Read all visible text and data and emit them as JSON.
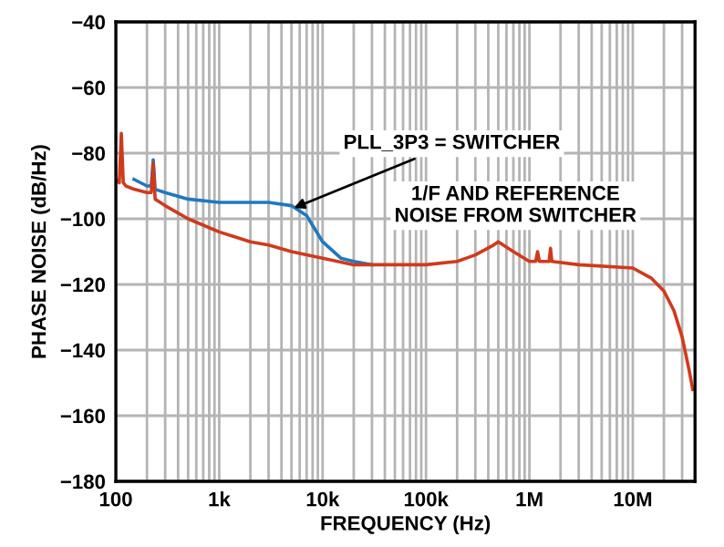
{
  "chart_data": {
    "type": "line",
    "xlabel": "FREQUENCY (Hz)",
    "ylabel": "PHASE NOISE (dB/Hz)",
    "log": "x",
    "grid": true,
    "legend": false,
    "marker": "none",
    "line_style": "solid",
    "xlim": [
      100,
      40000000
    ],
    "ylim": [
      -180,
      -40
    ],
    "xticks": [
      {
        "value": 100,
        "label": "100"
      },
      {
        "value": 1000,
        "label": "1k"
      },
      {
        "value": 10000,
        "label": "10k"
      },
      {
        "value": 100000,
        "label": "100k"
      },
      {
        "value": 1000000,
        "label": "1M"
      },
      {
        "value": 10000000,
        "label": "10M"
      }
    ],
    "yticks": [
      -180,
      -160,
      -140,
      -120,
      -100,
      -80,
      -60,
      -40
    ],
    "annotations": [
      {
        "text": "PLL_3P3 = SWITCHER",
        "x": 5000,
        "y": -97
      },
      "1/F AND REFERENCE\nNOISE FROM SWITCHER"
    ],
    "series": [
      {
        "color": "#1f78c1",
        "x": [
          150,
          200,
          220,
          230,
          240,
          300,
          500,
          1000,
          2000,
          3000,
          5000,
          7000,
          8000,
          10000,
          15000,
          20000,
          30000
        ],
        "values": [
          -88,
          -90,
          -90,
          -82,
          -91,
          -92,
          -94,
          -95,
          -95,
          -95,
          -96,
          -99,
          -102,
          -107,
          -112,
          -113,
          -114
        ]
      },
      {
        "color": "#d03a1c",
        "x": [
          100,
          108,
          113,
          118,
          125,
          150,
          200,
          220,
          230,
          240,
          300,
          500,
          1000,
          2000,
          3000,
          5000,
          10000,
          20000,
          30000,
          100000,
          200000,
          300000,
          450000,
          500000,
          700000,
          1000000,
          1150000,
          1200000,
          1250000,
          1550000,
          1600000,
          1650000,
          3000000,
          10000000,
          15000000,
          20000000,
          25000000,
          30000000,
          35000000,
          38000000
        ],
        "values": [
          -88,
          -89,
          -74,
          -89,
          -90,
          -91,
          -92,
          -92,
          -83,
          -94,
          -96,
          -100,
          -104,
          -107,
          -108,
          -110,
          -112,
          -114,
          -114,
          -114,
          -113,
          -111,
          -108,
          -107,
          -110,
          -113,
          -113,
          -110,
          -113,
          -113,
          -109,
          -113,
          -114,
          -115,
          -118,
          -122,
          -128,
          -136,
          -146,
          -152
        ]
      }
    ]
  }
}
